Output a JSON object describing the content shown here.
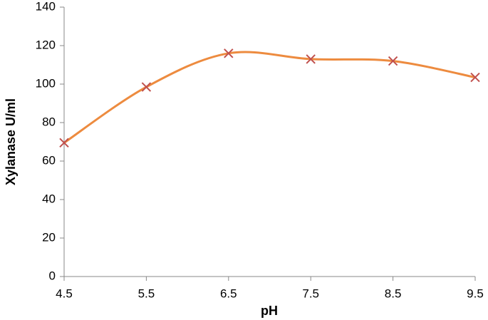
{
  "chart_data": {
    "type": "line",
    "x_label": "pH",
    "y_label": "Xylanase U/ml",
    "x": [
      4.5,
      5.5,
      6.5,
      7.5,
      8.5,
      9.5
    ],
    "series": [
      {
        "values": [
          69.5,
          98.5,
          116,
          113,
          112,
          103.5
        ],
        "color": "#ED8B3F",
        "marker_color": "#C0504D",
        "smooth": true
      }
    ],
    "xlim": [
      4.5,
      9.5
    ],
    "xticks": [
      4.5,
      5.5,
      6.5,
      7.5,
      8.5,
      9.5
    ],
    "ylim": [
      0,
      140
    ],
    "yticks": [
      0,
      20,
      40,
      60,
      80,
      100,
      120,
      140
    ],
    "grid": false
  }
}
